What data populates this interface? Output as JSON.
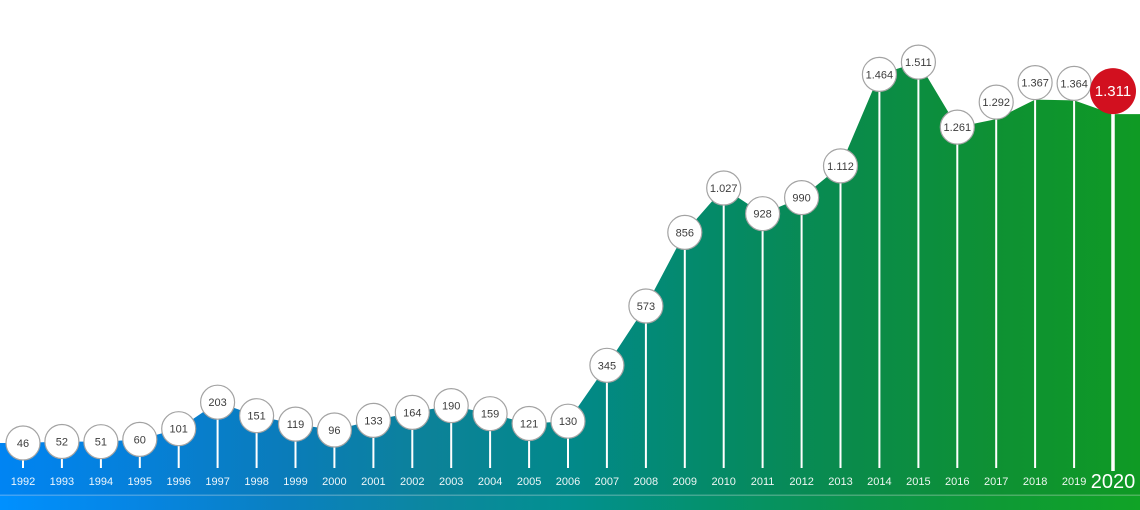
{
  "chart_data": {
    "type": "area",
    "title": "",
    "xlabel": "",
    "ylabel": "",
    "ylim": [
      0,
      1750
    ],
    "grid": false,
    "legend": "none",
    "x_axis_labels": [
      "1992",
      "1993",
      "1994",
      "1995",
      "1996",
      "1997",
      "1998",
      "1999",
      "2000",
      "2001",
      "2002",
      "2003",
      "2004",
      "2005",
      "2006",
      "2007",
      "2008",
      "2009",
      "2010",
      "2011",
      "2012",
      "2013",
      "2014",
      "2015",
      "2016",
      "2017",
      "2018",
      "2019",
      "2020"
    ],
    "points": [
      {
        "year": "1992",
        "value": 46,
        "label": "46",
        "highlighted": false
      },
      {
        "year": "1993",
        "value": 52,
        "label": "52",
        "highlighted": false
      },
      {
        "year": "1994",
        "value": 51,
        "label": "51",
        "highlighted": false
      },
      {
        "year": "1995",
        "value": 60,
        "label": "60",
        "highlighted": false
      },
      {
        "year": "1996",
        "value": 101,
        "label": "101",
        "highlighted": false
      },
      {
        "year": "1997",
        "value": 203,
        "label": "203",
        "highlighted": false
      },
      {
        "year": "1998",
        "value": 151,
        "label": "151",
        "highlighted": false
      },
      {
        "year": "1999",
        "value": 119,
        "label": "119",
        "highlighted": false
      },
      {
        "year": "2000",
        "value": 96,
        "label": "96",
        "highlighted": false
      },
      {
        "year": "2001",
        "value": 133,
        "label": "133",
        "highlighted": false
      },
      {
        "year": "2002",
        "value": 164,
        "label": "164",
        "highlighted": false
      },
      {
        "year": "2003",
        "value": 190,
        "label": "190",
        "highlighted": false
      },
      {
        "year": "2004",
        "value": 159,
        "label": "159",
        "highlighted": false
      },
      {
        "year": "2005",
        "value": 121,
        "label": "121",
        "highlighted": false
      },
      {
        "year": "2006",
        "value": 130,
        "label": "130",
        "highlighted": false
      },
      {
        "year": "2007",
        "value": 345,
        "label": "345",
        "highlighted": false
      },
      {
        "year": "2008",
        "value": 573,
        "label": "573",
        "highlighted": false
      },
      {
        "year": "2009",
        "value": 856,
        "label": "856",
        "highlighted": false
      },
      {
        "year": "2010",
        "value": 1027,
        "label": "1.027",
        "highlighted": false
      },
      {
        "year": "2011",
        "value": 928,
        "label": "928",
        "highlighted": false
      },
      {
        "year": "2012",
        "value": 990,
        "label": "990",
        "highlighted": false
      },
      {
        "year": "2013",
        "value": 1112,
        "label": "1.112",
        "highlighted": false
      },
      {
        "year": "2014",
        "value": 1464,
        "label": "1.464",
        "highlighted": false
      },
      {
        "year": "2015",
        "value": 1511,
        "label": "1.511",
        "highlighted": false
      },
      {
        "year": "2016",
        "value": 1261,
        "label": "1.261",
        "highlighted": false
      },
      {
        "year": "2017",
        "value": 1292,
        "label": "1.292",
        "highlighted": false
      },
      {
        "year": "2018",
        "value": 1367,
        "label": "1.367",
        "highlighted": false
      },
      {
        "year": "2019",
        "value": 1364,
        "label": "1.364",
        "highlighted": false
      },
      {
        "year": "2020",
        "value": 1311,
        "label": "1.311",
        "highlighted": true
      }
    ],
    "colors": {
      "area_gradient": [
        "#0084f3",
        "#0680d8",
        "#0a7cba",
        "#0c8299",
        "#02898a",
        "#048a68",
        "#0a8b4a",
        "#0e9133",
        "#0f9a24"
      ],
      "footer_gradient": [
        "#0090ff",
        "#0685e2",
        "#0a80c0",
        "#0c87a0",
        "#02908f",
        "#04916c",
        "#0a934d",
        "#0e9a35",
        "#10a326"
      ],
      "separator": "rgba(255,255,255,0.32)",
      "highlight": "#d2101f",
      "circle_fill": "#ffffff",
      "circle_border": "#a3a3a3",
      "point_label_text": "#3c3c3c",
      "highlight_label_text": "#ffffff",
      "axis_text": "#ffffff",
      "connector": "#ffffff",
      "background": "#ffffff"
    }
  }
}
